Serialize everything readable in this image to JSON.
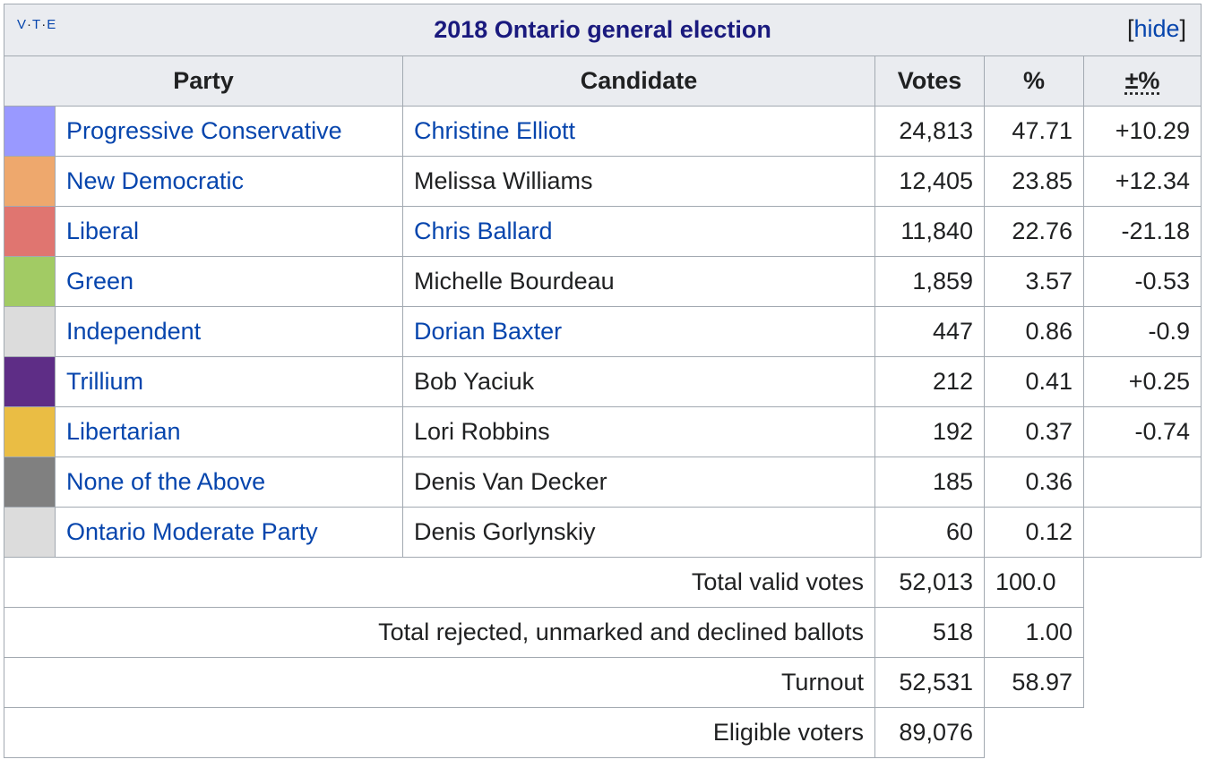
{
  "title_bar": {
    "vte": [
      "V",
      "T",
      "E"
    ],
    "title": "2018 Ontario general election",
    "hide_label": "hide",
    "bracket_open": "[",
    "bracket_close": "]"
  },
  "headers": {
    "party": "Party",
    "candidate": "Candidate",
    "votes": "Votes",
    "percent": "%",
    "change": "±%"
  },
  "rows": [
    {
      "color": "#9999ff",
      "party": "Progressive Conservative",
      "party_link": true,
      "candidate": "Christine Elliott",
      "candidate_link": true,
      "votes": "24,813",
      "percent": "47.71",
      "change": "+10.29"
    },
    {
      "color": "#eea86d",
      "party": "New Democratic",
      "party_link": true,
      "candidate": "Melissa Williams",
      "candidate_link": false,
      "votes": "12,405",
      "percent": "23.85",
      "change": "+12.34"
    },
    {
      "color": "#e07570",
      "party": "Liberal",
      "party_link": true,
      "candidate": "Chris Ballard",
      "candidate_link": true,
      "votes": "11,840",
      "percent": "22.76",
      "change": "-21.18"
    },
    {
      "color": "#a2cb64",
      "party": "Green",
      "party_link": true,
      "candidate": "Michelle Bourdeau",
      "candidate_link": false,
      "votes": "1,859",
      "percent": "3.57",
      "change": "-0.53"
    },
    {
      "color": "#dcdcdc",
      "party": "Independent",
      "party_link": true,
      "candidate": "Dorian Baxter",
      "candidate_link": true,
      "votes": "447",
      "percent": "0.86",
      "change": "-0.9"
    },
    {
      "color": "#5e2d86",
      "party": "Trillium",
      "party_link": true,
      "candidate": "Bob Yaciuk",
      "candidate_link": false,
      "votes": "212",
      "percent": "0.41",
      "change": "+0.25"
    },
    {
      "color": "#eabd44",
      "party": "Libertarian",
      "party_link": true,
      "candidate": "Lori Robbins",
      "candidate_link": false,
      "votes": "192",
      "percent": "0.37",
      "change": "-0.74"
    },
    {
      "color": "#808080",
      "party": "None of the Above",
      "party_link": true,
      "candidate": "Denis Van Decker",
      "candidate_link": false,
      "votes": "185",
      "percent": "0.36",
      "change": ""
    },
    {
      "color": "#dcdcdc",
      "party": "Ontario Moderate Party",
      "party_link": true,
      "candidate": "Denis Gorlynskiy",
      "candidate_link": false,
      "votes": "60",
      "percent": "0.12",
      "change": ""
    }
  ],
  "totals": [
    {
      "label": "Total valid votes",
      "votes": "52,013",
      "percent": "100.0"
    },
    {
      "label": "Total rejected, unmarked and declined ballots",
      "votes": "518",
      "percent": "1.00"
    },
    {
      "label": "Turnout",
      "votes": "52,531",
      "percent": "58.97"
    },
    {
      "label": "Eligible voters",
      "votes": "89,076",
      "percent": ""
    }
  ]
}
